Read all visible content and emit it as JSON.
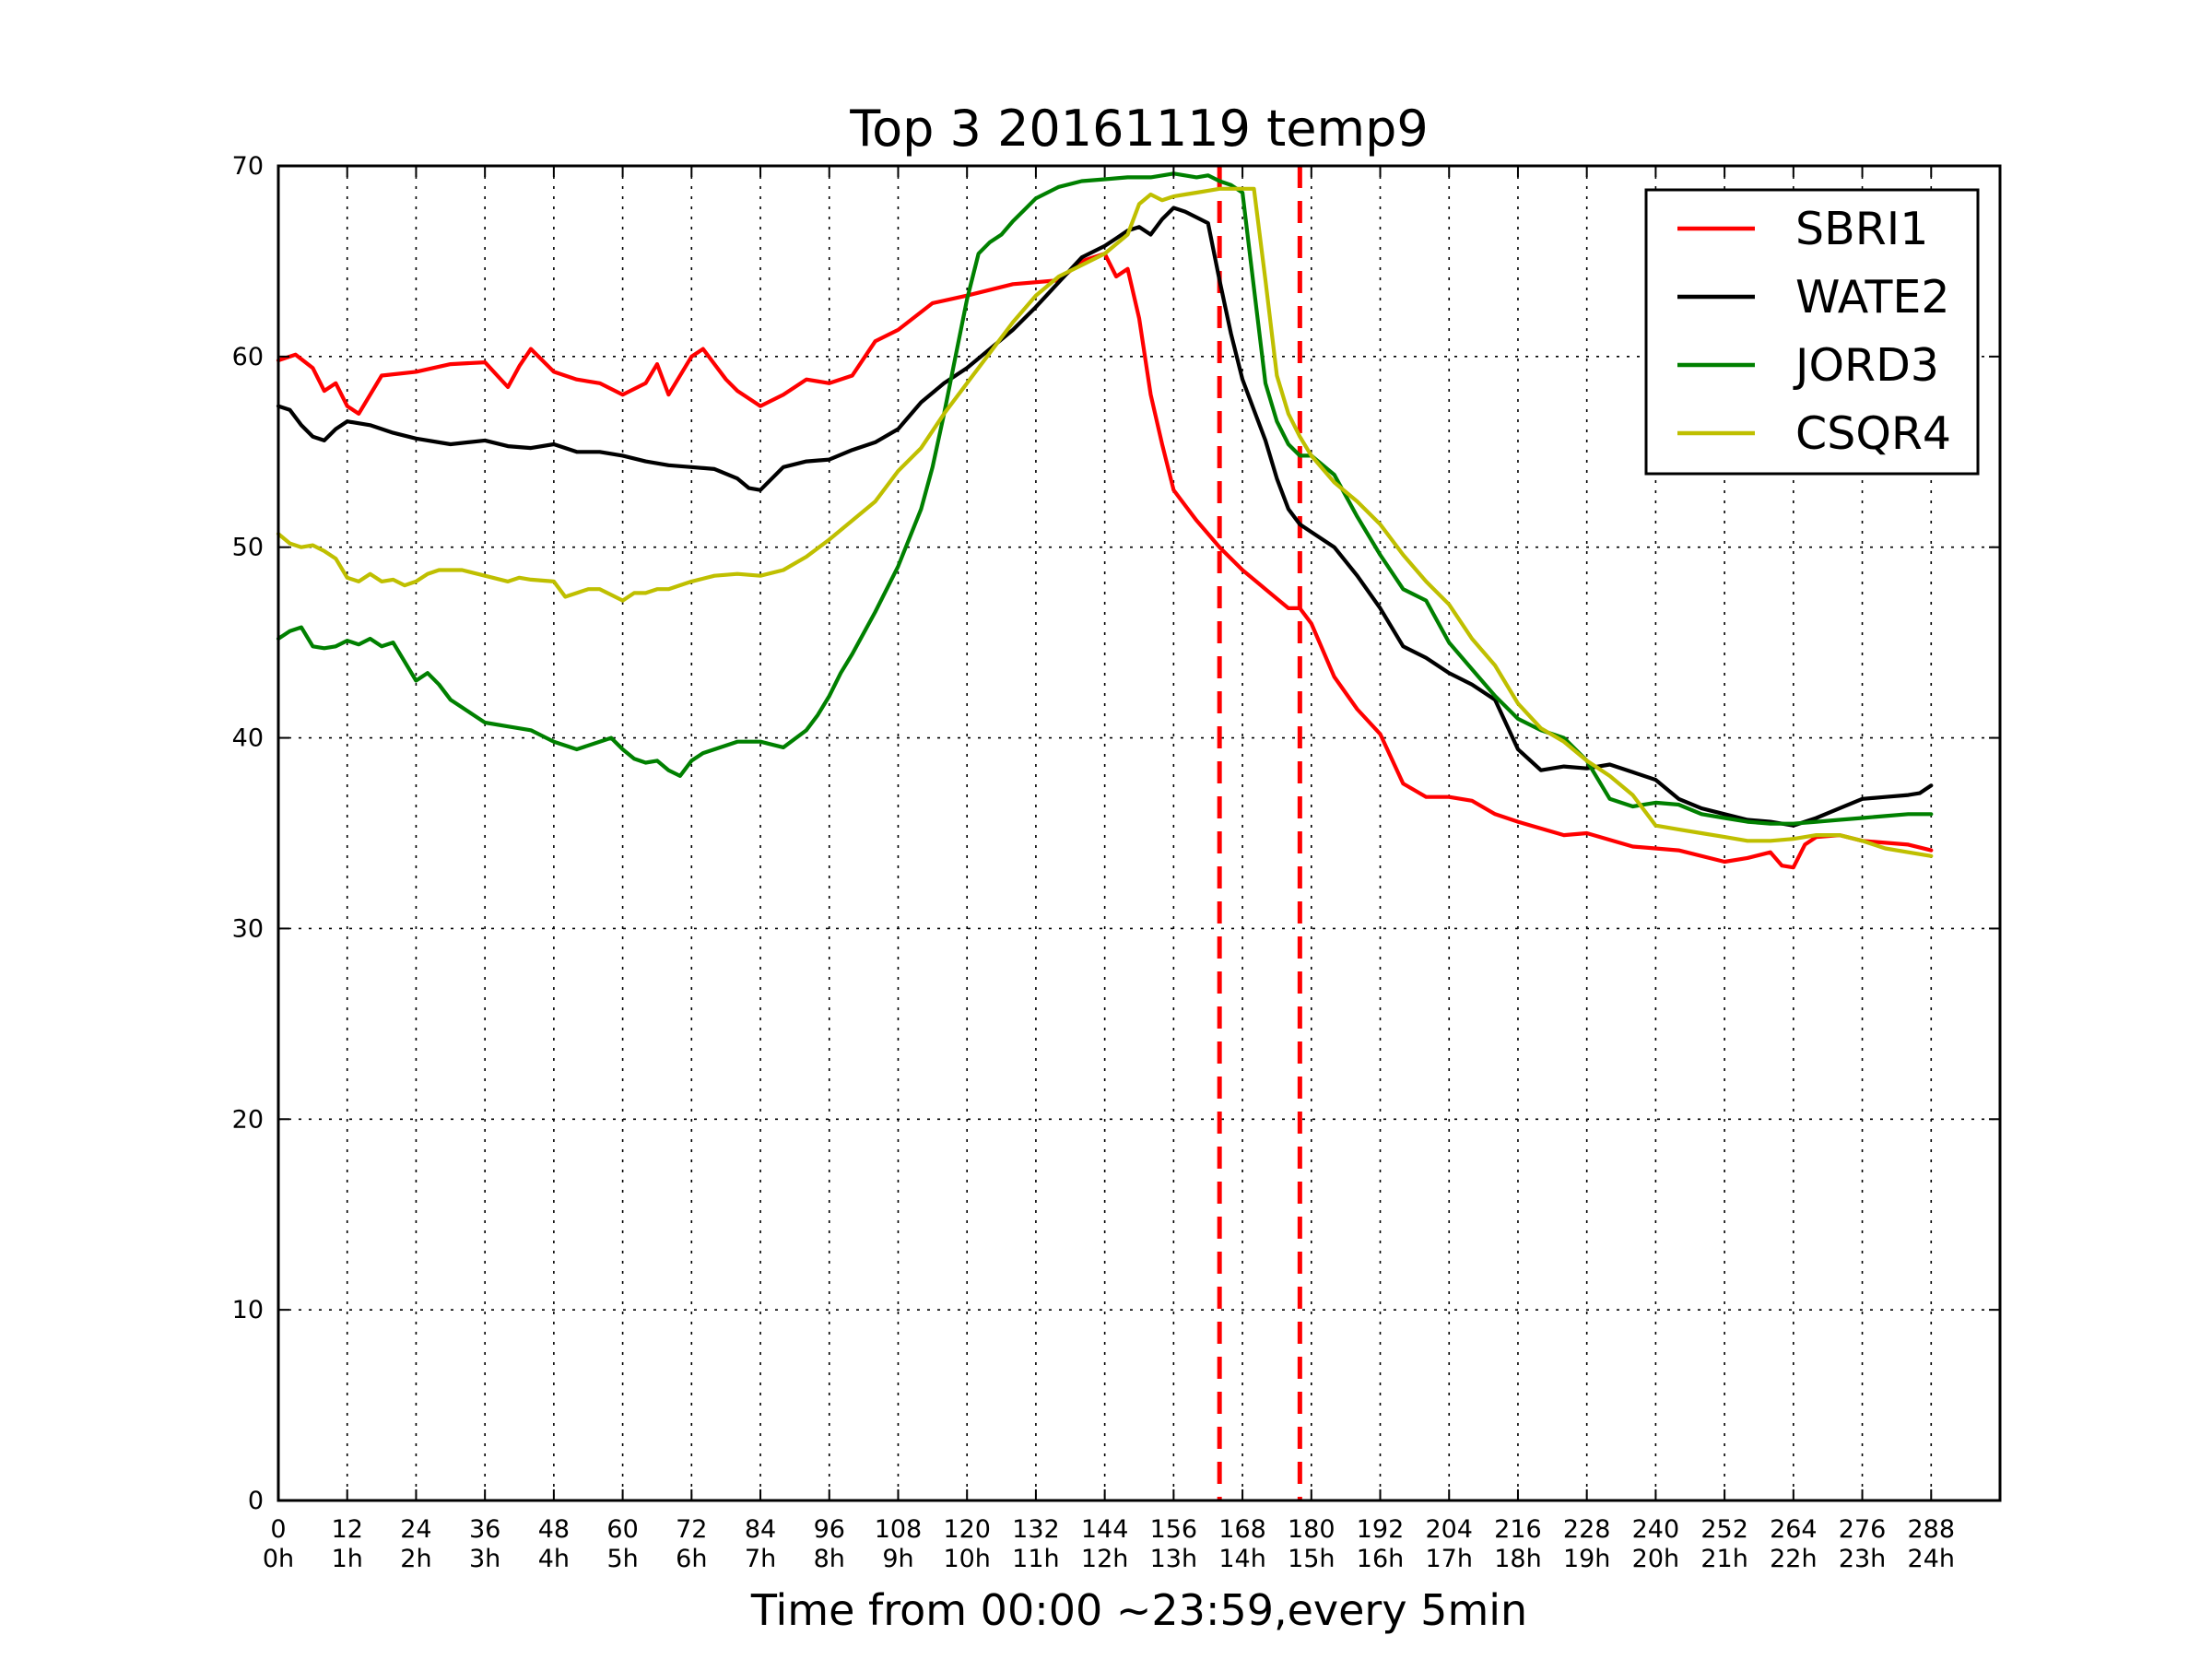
{
  "chart_data": {
    "type": "line",
    "title": "Top 3 20161119 temp9",
    "xlabel": "Time from 00:00 ~23:59,every 5min",
    "ylabel": "",
    "xlim": [
      0,
      300
    ],
    "ylim": [
      0,
      70
    ],
    "grid": true,
    "legend_position": "top-right",
    "x_ticks": [
      {
        "value": 0,
        "label": "0",
        "sublabel": "0h"
      },
      {
        "value": 12,
        "label": "12",
        "sublabel": "1h"
      },
      {
        "value": 24,
        "label": "24",
        "sublabel": "2h"
      },
      {
        "value": 36,
        "label": "36",
        "sublabel": "3h"
      },
      {
        "value": 48,
        "label": "48",
        "sublabel": "4h"
      },
      {
        "value": 60,
        "label": "60",
        "sublabel": "5h"
      },
      {
        "value": 72,
        "label": "72",
        "sublabel": "6h"
      },
      {
        "value": 84,
        "label": "84",
        "sublabel": "7h"
      },
      {
        "value": 96,
        "label": "96",
        "sublabel": "8h"
      },
      {
        "value": 108,
        "label": "108",
        "sublabel": "9h"
      },
      {
        "value": 120,
        "label": "120",
        "sublabel": "10h"
      },
      {
        "value": 132,
        "label": "132",
        "sublabel": "11h"
      },
      {
        "value": 144,
        "label": "144",
        "sublabel": "12h"
      },
      {
        "value": 156,
        "label": "156",
        "sublabel": "13h"
      },
      {
        "value": 168,
        "label": "168",
        "sublabel": "14h"
      },
      {
        "value": 180,
        "label": "180",
        "sublabel": "15h"
      },
      {
        "value": 192,
        "label": "192",
        "sublabel": "16h"
      },
      {
        "value": 204,
        "label": "204",
        "sublabel": "17h"
      },
      {
        "value": 216,
        "label": "216",
        "sublabel": "18h"
      },
      {
        "value": 228,
        "label": "228",
        "sublabel": "19h"
      },
      {
        "value": 240,
        "label": "240",
        "sublabel": "20h"
      },
      {
        "value": 252,
        "label": "252",
        "sublabel": "21h"
      },
      {
        "value": 264,
        "label": "264",
        "sublabel": "22h"
      },
      {
        "value": 276,
        "label": "276",
        "sublabel": "23h"
      },
      {
        "value": 288,
        "label": "288",
        "sublabel": "24h"
      }
    ],
    "y_ticks": [
      0,
      10,
      20,
      30,
      40,
      50,
      60,
      70
    ],
    "vertical_markers": [
      {
        "x": 164,
        "color": "#ff0000",
        "style": "dashed"
      },
      {
        "x": 178,
        "color": "#ff0000",
        "style": "dashed"
      }
    ],
    "series": [
      {
        "name": "SBRI1",
        "color": "#ff0000",
        "x": [
          0,
          3,
          6,
          8,
          10,
          12,
          14,
          18,
          24,
          30,
          36,
          40,
          42,
          44,
          48,
          52,
          56,
          60,
          64,
          66,
          68,
          72,
          74,
          76,
          78,
          80,
          84,
          88,
          92,
          96,
          100,
          104,
          108,
          114,
          120,
          128,
          136,
          140,
          144,
          146,
          148,
          150,
          152,
          154,
          156,
          158,
          160,
          164,
          168,
          172,
          176,
          178,
          180,
          184,
          188,
          192,
          196,
          200,
          204,
          208,
          212,
          216,
          224,
          228,
          236,
          244,
          252,
          256,
          260,
          262,
          264,
          266,
          268,
          272,
          276,
          284,
          288
        ],
        "y": [
          59.8,
          60.1,
          59.4,
          58.2,
          58.6,
          57.4,
          57,
          59.0,
          59.2,
          59.6,
          59.7,
          58.4,
          59.5,
          60.4,
          59.2,
          58.8,
          58.6,
          58.0,
          58.6,
          59.6,
          58.0,
          60.0,
          60.4,
          59.6,
          58.8,
          58.2,
          57.4,
          58.0,
          58.8,
          58.6,
          59.0,
          60.8,
          61.4,
          62.8,
          63.2,
          63.8,
          64.0,
          65.0,
          65.4,
          64.2,
          64.6,
          62.0,
          58.0,
          55.4,
          53.0,
          52.2,
          51.4,
          50.0,
          48.8,
          47.8,
          46.8,
          46.8,
          46.0,
          43.2,
          41.5,
          40.2,
          37.6,
          36.9,
          36.9,
          36.7,
          36.0,
          35.6,
          34.9,
          35.0,
          34.3,
          34.1,
          33.5,
          33.7,
          34.0,
          33.3,
          33.2,
          34.4,
          34.8,
          34.9,
          34.6,
          34.4,
          34.1
        ]
      },
      {
        "name": "WATE2",
        "color": "#000000",
        "x": [
          0,
          2,
          4,
          6,
          8,
          10,
          12,
          16,
          20,
          24,
          30,
          36,
          40,
          44,
          48,
          52,
          56,
          60,
          64,
          68,
          72,
          76,
          80,
          82,
          84,
          86,
          88,
          92,
          96,
          100,
          104,
          108,
          112,
          116,
          120,
          124,
          128,
          132,
          136,
          140,
          144,
          146,
          148,
          150,
          152,
          154,
          156,
          158,
          160,
          162,
          164,
          166,
          168,
          170,
          172,
          174,
          176,
          178,
          180,
          184,
          188,
          192,
          196,
          200,
          204,
          208,
          212,
          216,
          220,
          224,
          228,
          232,
          236,
          240,
          244,
          248,
          252,
          256,
          260,
          264,
          268,
          272,
          276,
          280,
          284,
          286,
          288
        ],
        "y": [
          57.4,
          57.2,
          56.4,
          55.8,
          55.6,
          56.2,
          56.6,
          56.4,
          56.0,
          55.7,
          55.4,
          55.6,
          55.3,
          55.2,
          55.4,
          55.0,
          55.0,
          54.8,
          54.5,
          54.3,
          54.2,
          54.1,
          53.6,
          53.1,
          53.0,
          53.6,
          54.2,
          54.5,
          54.6,
          55.1,
          55.5,
          56.2,
          57.6,
          58.6,
          59.4,
          60.4,
          61.4,
          62.6,
          63.9,
          65.2,
          65.8,
          66.2,
          66.6,
          66.8,
          66.4,
          67.2,
          67.8,
          67.6,
          67.3,
          67.0,
          64.0,
          61.2,
          58.8,
          57.2,
          55.6,
          53.6,
          52.0,
          51.2,
          50.8,
          50.0,
          48.5,
          46.8,
          44.8,
          44.2,
          43.4,
          42.8,
          42.0,
          39.4,
          38.3,
          38.5,
          38.4,
          38.6,
          38.2,
          37.8,
          36.8,
          36.3,
          36.0,
          35.7,
          35.6,
          35.4,
          35.8,
          36.3,
          36.8,
          36.9,
          37.0,
          37.1,
          37.5
        ]
      },
      {
        "name": "JORD3",
        "color": "#008000",
        "x": [
          0,
          2,
          4,
          6,
          8,
          10,
          12,
          14,
          16,
          18,
          20,
          22,
          24,
          26,
          28,
          30,
          32,
          34,
          36,
          40,
          44,
          48,
          52,
          56,
          58,
          60,
          62,
          64,
          66,
          68,
          70,
          72,
          74,
          76,
          80,
          84,
          88,
          92,
          94,
          96,
          98,
          100,
          104,
          108,
          112,
          114,
          116,
          118,
          120,
          122,
          124,
          126,
          128,
          130,
          132,
          136,
          140,
          144,
          148,
          152,
          156,
          160,
          162,
          164,
          166,
          168,
          170,
          172,
          174,
          176,
          178,
          180,
          184,
          188,
          192,
          196,
          200,
          204,
          208,
          212,
          216,
          220,
          224,
          228,
          232,
          236,
          240,
          244,
          248,
          252,
          256,
          260,
          264,
          268,
          272,
          276,
          280,
          284,
          288
        ],
        "y": [
          45.2,
          45.6,
          45.8,
          44.8,
          44.7,
          44.8,
          45.1,
          44.9,
          45.2,
          44.8,
          45.0,
          44.0,
          43.0,
          43.4,
          42.8,
          42.0,
          41.6,
          41.2,
          40.8,
          40.6,
          40.4,
          39.8,
          39.4,
          39.8,
          40.0,
          39.4,
          38.9,
          38.7,
          38.8,
          38.3,
          38.0,
          38.8,
          39.2,
          39.4,
          39.8,
          39.8,
          39.5,
          40.4,
          41.2,
          42.2,
          43.4,
          44.4,
          46.6,
          49.0,
          52.0,
          54.2,
          57.0,
          60.0,
          63.0,
          65.4,
          66.0,
          66.4,
          67.1,
          67.7,
          68.3,
          68.9,
          69.2,
          69.3,
          69.4,
          69.4,
          69.6,
          69.4,
          69.5,
          69.2,
          69.0,
          68.6,
          63.6,
          58.6,
          56.6,
          55.4,
          54.8,
          54.8,
          53.8,
          51.6,
          49.6,
          47.8,
          47.2,
          45.0,
          43.6,
          42.2,
          41.0,
          40.4,
          40.0,
          38.8,
          36.8,
          36.4,
          36.6,
          36.5,
          36.0,
          35.8,
          35.6,
          35.5,
          35.5,
          35.6,
          35.7,
          35.8,
          35.9,
          36.0,
          36.0
        ]
      },
      {
        "name": "CSQR4",
        "color": "#bfbf00",
        "x": [
          0,
          2,
          4,
          6,
          8,
          10,
          12,
          14,
          16,
          18,
          20,
          22,
          24,
          26,
          28,
          32,
          36,
          40,
          42,
          44,
          48,
          50,
          52,
          54,
          56,
          58,
          60,
          62,
          64,
          66,
          68,
          72,
          76,
          80,
          84,
          88,
          92,
          96,
          100,
          104,
          108,
          112,
          116,
          120,
          124,
          128,
          132,
          136,
          140,
          144,
          148,
          150,
          152,
          154,
          156,
          158,
          160,
          162,
          164,
          166,
          168,
          170,
          172,
          174,
          176,
          178,
          180,
          184,
          188,
          192,
          196,
          200,
          204,
          208,
          212,
          216,
          220,
          224,
          228,
          232,
          236,
          240,
          244,
          248,
          252,
          256,
          260,
          264,
          268,
          272,
          276,
          280,
          284,
          288
        ],
        "y": [
          50.7,
          50.2,
          50.0,
          50.1,
          49.8,
          49.4,
          48.4,
          48.2,
          48.6,
          48.2,
          48.3,
          48.0,
          48.2,
          48.6,
          48.8,
          48.8,
          48.5,
          48.2,
          48.4,
          48.3,
          48.2,
          47.4,
          47.6,
          47.8,
          47.8,
          47.5,
          47.2,
          47.6,
          47.6,
          47.8,
          47.8,
          48.2,
          48.5,
          48.6,
          48.5,
          48.8,
          49.5,
          50.4,
          51.4,
          52.4,
          54.0,
          55.2,
          57.0,
          58.6,
          60.2,
          61.8,
          63.2,
          64.2,
          64.8,
          65.4,
          66.4,
          68.0,
          68.5,
          68.2,
          68.4,
          68.5,
          68.6,
          68.7,
          68.8,
          68.8,
          68.8,
          68.8,
          64.0,
          59.0,
          57.0,
          55.8,
          54.8,
          53.4,
          52.4,
          51.2,
          49.6,
          48.2,
          47.0,
          45.2,
          43.8,
          41.8,
          40.5,
          39.8,
          38.8,
          38.0,
          37.0,
          35.4,
          35.2,
          35.0,
          34.8,
          34.6,
          34.6,
          34.7,
          34.9,
          34.9,
          34.6,
          34.2,
          34.0,
          33.8
        ]
      }
    ]
  }
}
